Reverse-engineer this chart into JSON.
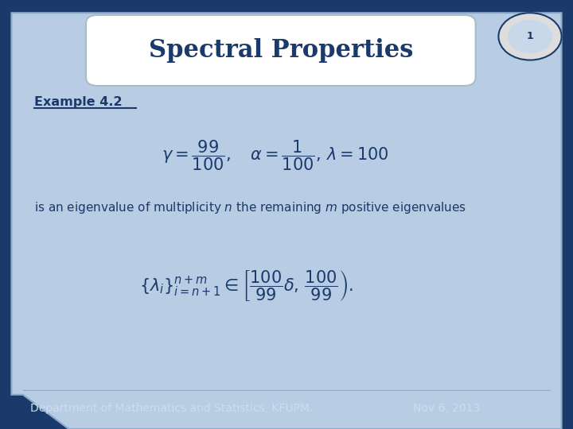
{
  "title": "Spectral Properties",
  "title_fontsize": 22,
  "title_color": "#1a3a6b",
  "bg_color": "#b8cce4",
  "slide_bg": "#1a3a6b",
  "title_box_color": "#ffffff",
  "example_label": "Example 4.2",
  "footer_left": "Department of Mathematics and Statistics, KFUPM.",
  "footer_right": "Nov 6, 2013",
  "footer_color": "#ccddee",
  "footer_fontsize": 10
}
